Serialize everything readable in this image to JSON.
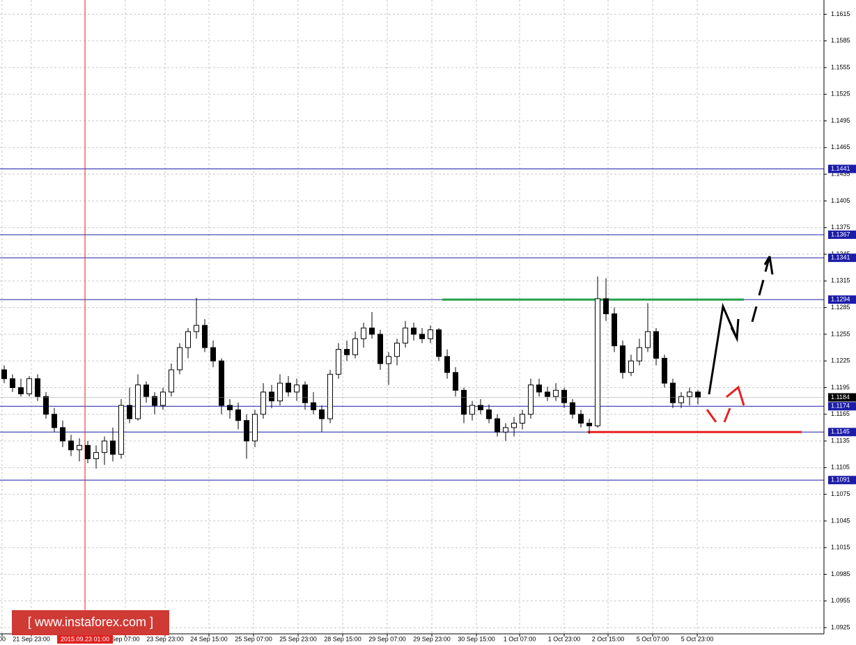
{
  "chart_data": {
    "type": "candlestick",
    "watermark": "[ www.instaforex.com ]",
    "xlim": [
      -0.5,
      98.08
    ],
    "xticks": [
      {
        "value": -0.25,
        "label": "00"
      },
      {
        "value": 3.25,
        "label": "21 Sep 23:00"
      },
      {
        "value": 14.5,
        "label": "Sep 07:00"
      },
      {
        "value": 19.25,
        "label": "23 Sep 23:00"
      },
      {
        "value": 24.5,
        "label": "24 Sep 15:00"
      },
      {
        "value": 29.83,
        "label": "25 Sep 07:00"
      },
      {
        "value": 35.17,
        "label": "25 Sep 23:00"
      },
      {
        "value": 40.5,
        "label": "28 Sep 15:00"
      },
      {
        "value": 45.83,
        "label": "29 Sep 07:00"
      },
      {
        "value": 51.17,
        "label": "29 Sep 23:00"
      },
      {
        "value": 56.5,
        "label": "30 Sep 15:00"
      },
      {
        "value": 61.67,
        "label": "1 Oct 07:00"
      },
      {
        "value": 67,
        "label": "1 Oct 23:00"
      },
      {
        "value": 72.25,
        "label": "2 Oct 15:00"
      },
      {
        "value": 77.58,
        "label": "5 Oct 07:00"
      },
      {
        "value": 82.92,
        "label": "5 Oct 23:00"
      }
    ],
    "vline": {
      "x": 9.67,
      "label": "2015.09.23 01:00",
      "color": "#e02020"
    },
    "ylim": [
      1.0918,
      1.1631
    ],
    "yticks": [
      1.1615,
      1.1585,
      1.1555,
      1.1525,
      1.1495,
      1.1465,
      1.1435,
      1.1405,
      1.1375,
      1.1345,
      1.1315,
      1.1285,
      1.1255,
      1.1225,
      1.1195,
      1.1165,
      1.1135,
      1.1105,
      1.1075,
      1.1045,
      1.1015,
      1.0985,
      1.0955,
      1.0925
    ],
    "grid": true,
    "levels": [
      1.1441,
      1.1367,
      1.1341,
      1.1294,
      1.1174,
      1.1145,
      1.1091
    ],
    "level_color": "#1c1ca8",
    "current_price": 1.1184,
    "segments": [
      {
        "value": 1.1294,
        "from": 52.4,
        "to": 88.5,
        "color": "#22a04a"
      },
      {
        "value": 1.1145,
        "from": 69.8,
        "to": 95.4,
        "color": "#e82020"
      }
    ],
    "up_color": "#ffffff",
    "down_color": "#000000",
    "ohlc": [
      [
        1.1215,
        1.122,
        1.12,
        1.1205
      ],
      [
        1.1205,
        1.121,
        1.119,
        1.1195
      ],
      [
        1.1195,
        1.1205,
        1.1185,
        1.1188
      ],
      [
        1.1188,
        1.1208,
        1.1185,
        1.1205
      ],
      [
        1.1205,
        1.121,
        1.118,
        1.1185
      ],
      [
        1.1185,
        1.119,
        1.116,
        1.1165
      ],
      [
        1.1165,
        1.1172,
        1.1145,
        1.115
      ],
      [
        1.115,
        1.1158,
        1.1128,
        1.1135
      ],
      [
        1.1135,
        1.1142,
        1.1118,
        1.1125
      ],
      [
        1.1125,
        1.1138,
        1.1112,
        1.113
      ],
      [
        1.113,
        1.1135,
        1.111,
        1.1115
      ],
      [
        1.1115,
        1.113,
        1.1104,
        1.1122
      ],
      [
        1.1122,
        1.114,
        1.1108,
        1.1135
      ],
      [
        1.1135,
        1.115,
        1.1112,
        1.112
      ],
      [
        1.112,
        1.1182,
        1.1115,
        1.1175
      ],
      [
        1.1175,
        1.1195,
        1.1155,
        1.116
      ],
      [
        1.116,
        1.121,
        1.1158,
        1.1198
      ],
      [
        1.1198,
        1.1202,
        1.1178,
        1.1185
      ],
      [
        1.1185,
        1.119,
        1.1165,
        1.1175
      ],
      [
        1.1175,
        1.1195,
        1.117,
        1.119
      ],
      [
        1.119,
        1.1222,
        1.1185,
        1.1215
      ],
      [
        1.1215,
        1.1245,
        1.121,
        1.124
      ],
      [
        1.124,
        1.1262,
        1.1228,
        1.1258
      ],
      [
        1.1258,
        1.1296,
        1.125,
        1.1265
      ],
      [
        1.1265,
        1.1272,
        1.1235,
        1.124
      ],
      [
        1.124,
        1.1248,
        1.1218,
        1.1225
      ],
      [
        1.1225,
        1.1228,
        1.1165,
        1.1175
      ],
      [
        1.1175,
        1.1182,
        1.116,
        1.117
      ],
      [
        1.117,
        1.1178,
        1.1148,
        1.1158
      ],
      [
        1.1158,
        1.1165,
        1.1115,
        1.1135
      ],
      [
        1.1135,
        1.117,
        1.1128,
        1.1165
      ],
      [
        1.1165,
        1.12,
        1.116,
        1.119
      ],
      [
        1.119,
        1.1198,
        1.1172,
        1.118
      ],
      [
        1.118,
        1.121,
        1.1175,
        1.12
      ],
      [
        1.12,
        1.1208,
        1.1185,
        1.119
      ],
      [
        1.119,
        1.1205,
        1.118,
        1.1198
      ],
      [
        1.1198,
        1.1202,
        1.117,
        1.1178
      ],
      [
        1.1178,
        1.119,
        1.1165,
        1.117
      ],
      [
        1.117,
        1.1175,
        1.1145,
        1.116
      ],
      [
        1.116,
        1.1215,
        1.1155,
        1.121
      ],
      [
        1.121,
        1.1245,
        1.1205,
        1.1238
      ],
      [
        1.1238,
        1.1248,
        1.1225,
        1.1232
      ],
      [
        1.1232,
        1.1258,
        1.1228,
        1.125
      ],
      [
        1.125,
        1.1268,
        1.124,
        1.1262
      ],
      [
        1.1262,
        1.128,
        1.125,
        1.1255
      ],
      [
        1.1255,
        1.126,
        1.1215,
        1.1222
      ],
      [
        1.1222,
        1.1235,
        1.1198,
        1.123
      ],
      [
        1.123,
        1.125,
        1.122,
        1.1245
      ],
      [
        1.1245,
        1.127,
        1.124,
        1.1262
      ],
      [
        1.1262,
        1.1268,
        1.1248,
        1.1255
      ],
      [
        1.1255,
        1.1262,
        1.1245,
        1.125
      ],
      [
        1.125,
        1.1265,
        1.1245,
        1.126
      ],
      [
        1.126,
        1.1262,
        1.1225,
        1.123
      ],
      [
        1.123,
        1.1238,
        1.1205,
        1.1212
      ],
      [
        1.1212,
        1.1218,
        1.1185,
        1.1192
      ],
      [
        1.1192,
        1.1195,
        1.1155,
        1.1165
      ],
      [
        1.1165,
        1.118,
        1.1158,
        1.1175
      ],
      [
        1.1175,
        1.1182,
        1.1165,
        1.117
      ],
      [
        1.117,
        1.1176,
        1.1155,
        1.116
      ],
      [
        1.116,
        1.1165,
        1.114,
        1.1145
      ],
      [
        1.1145,
        1.1155,
        1.1135,
        1.115
      ],
      [
        1.115,
        1.1162,
        1.114,
        1.1155
      ],
      [
        1.1155,
        1.117,
        1.1148,
        1.1165
      ],
      [
        1.1165,
        1.1205,
        1.116,
        1.1198
      ],
      [
        1.1198,
        1.1205,
        1.1185,
        1.119
      ],
      [
        1.119,
        1.1196,
        1.118,
        1.1185
      ],
      [
        1.1185,
        1.12,
        1.118,
        1.1192
      ],
      [
        1.1192,
        1.1195,
        1.1172,
        1.1178
      ],
      [
        1.1178,
        1.1182,
        1.116,
        1.1165
      ],
      [
        1.1165,
        1.117,
        1.115,
        1.1155
      ],
      [
        1.1155,
        1.116,
        1.1143,
        1.1152
      ],
      [
        1.1152,
        1.132,
        1.115,
        1.1295
      ],
      [
        1.1295,
        1.1318,
        1.127,
        1.1278
      ],
      [
        1.1278,
        1.1285,
        1.1235,
        1.1242
      ],
      [
        1.1242,
        1.1248,
        1.1205,
        1.1212
      ],
      [
        1.1212,
        1.1232,
        1.1208,
        1.1225
      ],
      [
        1.1225,
        1.125,
        1.122,
        1.124
      ],
      [
        1.124,
        1.129,
        1.1235,
        1.1258
      ],
      [
        1.1258,
        1.1262,
        1.122,
        1.1228
      ],
      [
        1.1228,
        1.1232,
        1.1195,
        1.12
      ],
      [
        1.12,
        1.1205,
        1.1172,
        1.1178
      ],
      [
        1.1178,
        1.119,
        1.1172,
        1.1185
      ],
      [
        1.1185,
        1.1195,
        1.1175,
        1.119
      ],
      [
        1.119,
        1.1192,
        1.1176,
        1.1184
      ]
    ]
  }
}
